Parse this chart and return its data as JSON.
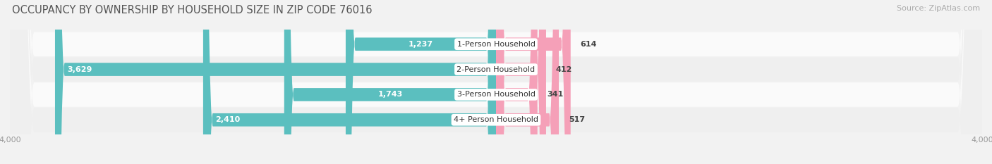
{
  "title": "OCCUPANCY BY OWNERSHIP BY HOUSEHOLD SIZE IN ZIP CODE 76016",
  "source": "Source: ZipAtlas.com",
  "categories": [
    "1-Person Household",
    "2-Person Household",
    "3-Person Household",
    "4+ Person Household"
  ],
  "owner_values": [
    1237,
    3629,
    1743,
    2410
  ],
  "renter_values": [
    614,
    412,
    341,
    517
  ],
  "owner_color": "#5BBFBF",
  "renter_color": "#F07090",
  "renter_color_light": "#F5A0B8",
  "background_color": "#f2f2f2",
  "row_color_light": "#fafafa",
  "row_color_dark": "#efefef",
  "xlim": 4000,
  "title_fontsize": 10.5,
  "source_fontsize": 8,
  "tick_fontsize": 8,
  "bar_label_fontsize": 8,
  "category_fontsize": 8,
  "bar_height": 0.52
}
